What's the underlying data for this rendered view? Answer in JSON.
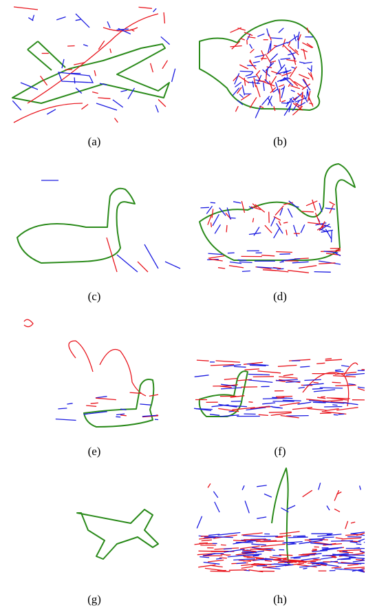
{
  "figure": {
    "captions": [
      "(a)",
      "(b)",
      "(c)",
      "(d)",
      "(e)",
      "(f)",
      "(g)",
      "(h)"
    ]
  }
}
